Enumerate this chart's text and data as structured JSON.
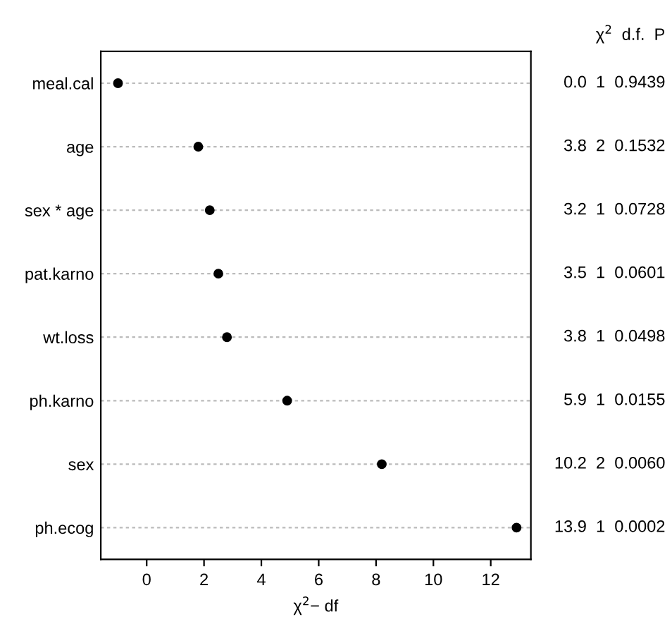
{
  "chart_data": {
    "type": "scatter",
    "orientation": "horizontal",
    "categories": [
      "meal.cal",
      "age",
      "sex * age",
      "pat.karno",
      "wt.loss",
      "ph.karno",
      "sex",
      "ph.ecog"
    ],
    "values": [
      -1.0,
      1.8,
      2.2,
      2.5,
      2.8,
      4.9,
      8.2,
      12.9
    ],
    "color": "#000000",
    "marker": "circle",
    "grid": "y",
    "xlim": [
      -1.6,
      13.4
    ],
    "xticks": [
      0,
      2,
      4,
      6,
      8,
      10,
      12
    ],
    "xlabel": "χ$^{2}$− df",
    "annotations": [
      "χ$^{2}$  d.f.  P",
      "0.0  1  0.9439",
      "3.8  2  0.1532",
      "3.2  1  0.0728",
      "3.5  1  0.0601",
      "3.8  1  0.0498",
      "5.9  1  0.0155",
      "10.2  2  0.0060",
      "13.9  1  0.0002"
    ]
  }
}
